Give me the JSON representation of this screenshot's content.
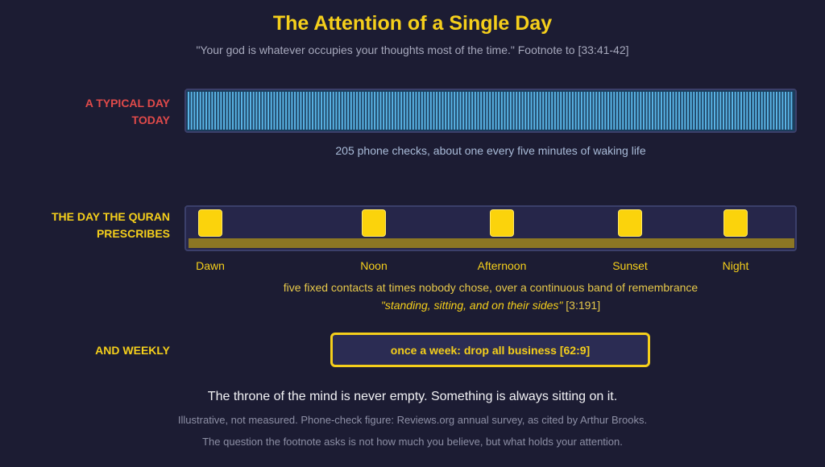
{
  "title": "The Attention of a Single Day",
  "subtitle": "\"Your god is whatever occupies your thoughts most of the time.\" Footnote to [33:41-42]",
  "typical_day": {
    "label_line1": "A TYPICAL DAY",
    "label_line2": "TODAY",
    "phone_checks": 205,
    "caption": "205 phone checks, about one every five minutes of waking life",
    "color": "#5ab4e6"
  },
  "quran_day": {
    "label_line1": "THE DAY THE QURAN",
    "label_line2": "PRESCRIBES",
    "prayers": [
      {
        "name": "Dawn"
      },
      {
        "name": "Noon"
      },
      {
        "name": "Afternoon"
      },
      {
        "name": "Sunset"
      },
      {
        "name": "Night"
      }
    ],
    "caption": "five fixed contacts at times nobody chose, over a continuous band of remembrance",
    "verse_quote": "\"standing, sitting, and on their sides\"",
    "verse_ref": "[3:191]",
    "color": "#fbd30c"
  },
  "weekly": {
    "label": "AND WEEKLY",
    "box_text": "once a week: drop all business [62:9]"
  },
  "closing": "The throne of the mind is never empty. Something is always sitting on it.",
  "notes": [
    "Illustrative, not measured. Phone-check figure: Reviews.org annual survey, as cited by Arthur Brooks.",
    "The question the footnote asks is not how much you believe, but what holds your attention."
  ]
}
